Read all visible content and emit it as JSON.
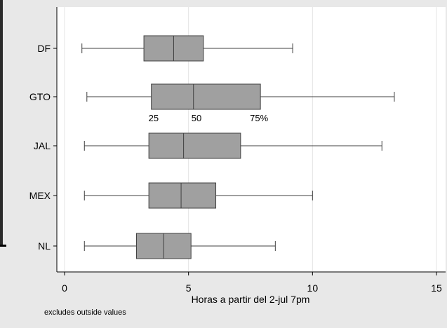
{
  "chart_data": {
    "type": "boxplot",
    "orientation": "horizontal",
    "categories": [
      "DF",
      "GTO",
      "JAL",
      "MEX",
      "NL"
    ],
    "boxes": [
      {
        "label": "DF",
        "whisker_low": 0.7,
        "q1": 3.2,
        "median": 4.4,
        "q3": 5.6,
        "whisker_high": 9.2
      },
      {
        "label": "GTO",
        "whisker_low": 0.9,
        "q1": 3.5,
        "median": 5.2,
        "q3": 7.9,
        "whisker_high": 13.3
      },
      {
        "label": "JAL",
        "whisker_low": 0.8,
        "q1": 3.4,
        "median": 4.8,
        "q3": 7.1,
        "whisker_high": 12.8
      },
      {
        "label": "MEX",
        "whisker_low": 0.8,
        "q1": 3.4,
        "median": 4.7,
        "q3": 6.1,
        "whisker_high": 10.0
      },
      {
        "label": "NL",
        "whisker_low": 0.8,
        "q1": 2.9,
        "median": 4.0,
        "q3": 5.1,
        "whisker_high": 8.5
      }
    ],
    "xlabel": "Horas a partir del 2-jul 7pm",
    "ylabel": "",
    "xlim": [
      0,
      15
    ],
    "xticks": [
      0,
      5,
      10,
      15
    ],
    "vertical_grid": true,
    "annotation": {
      "box": "GTO",
      "labels": [
        "25",
        "50",
        "75%"
      ]
    },
    "note": "excludes outside values",
    "colors": {
      "box_fill": "#a0a0a0",
      "box_stroke": "#404040",
      "plot_bg": "#ffffff",
      "outer_bg": "#e8e8e8",
      "grid": "#e4e4e4"
    }
  }
}
